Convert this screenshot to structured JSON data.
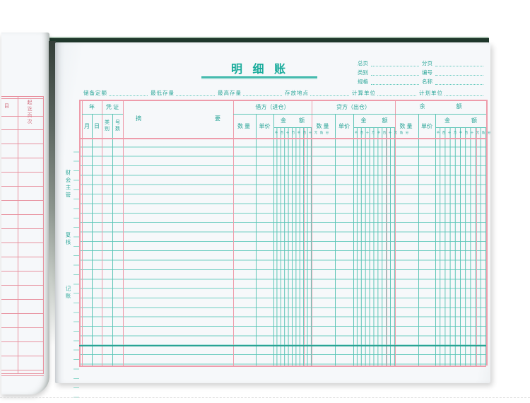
{
  "book": {
    "right_page": {
      "title": "明 细 账",
      "header_fields": {
        "rows": [
          {
            "left": "总页",
            "right": "分页"
          },
          {
            "left": "类别",
            "right": "编号"
          },
          {
            "left": "规格",
            "right": "名称"
          }
        ]
      },
      "info_fields": [
        "储备定额",
        "最低存量",
        "最高存量",
        "存放地点",
        "计算单位",
        "计划单位"
      ],
      "margin_labels": {
        "supervisor": "财会主管",
        "reviewer": "复核",
        "bookkeeper": "记账"
      },
      "table": {
        "year": "年",
        "month": "月",
        "day": "日",
        "voucher": "凭 证",
        "voucher_type": "类别",
        "voucher_no": "号数",
        "summary": "摘要",
        "debit": "借方（进仓）",
        "credit": "贷方（出仓）",
        "balance": "余额",
        "quantity": "数量",
        "unit_price": "单价",
        "amount": "金额",
        "amount_digits": [
          "千",
          "百",
          "十",
          "万",
          "千",
          "百",
          "十",
          "元",
          "角",
          "分"
        ]
      }
    },
    "left_page": {
      "partial_column_header": "目",
      "page_range_header": "起讫页次"
    },
    "colors": {
      "teal_print": "#2aa598",
      "teal_line": "#5cc5b6",
      "pink_line": "#ee9cab",
      "cover_green": "#20382c",
      "paper": "#f6f8fa"
    }
  }
}
